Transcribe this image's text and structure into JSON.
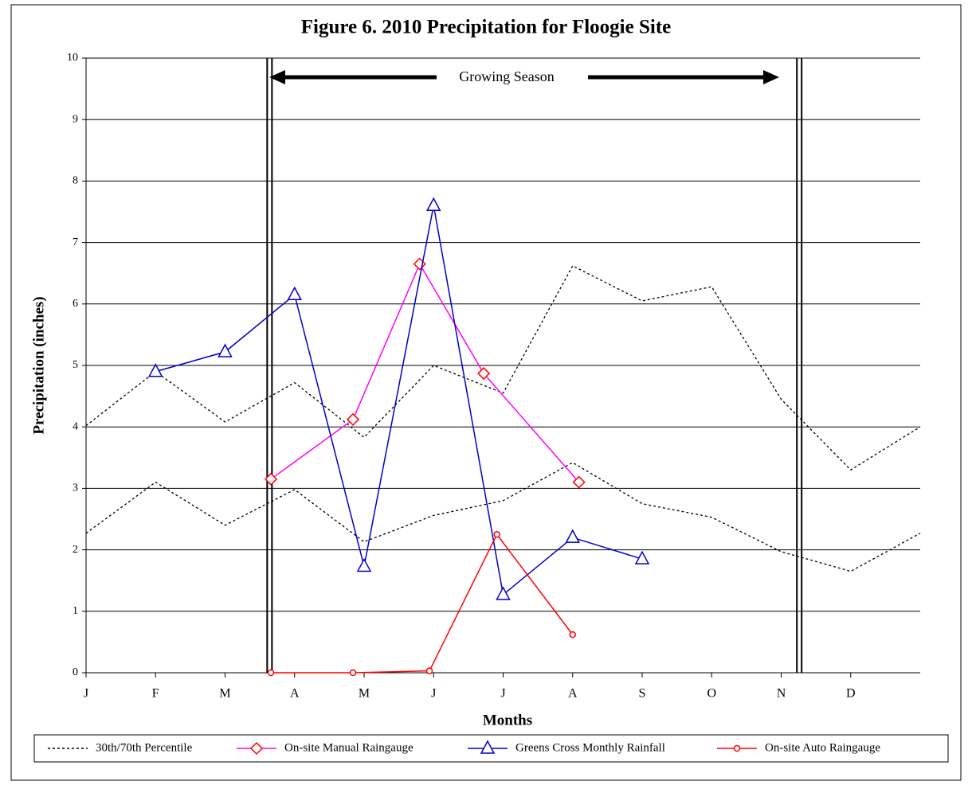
{
  "chart_data": {
    "type": "line",
    "title": "Figure 6.  2010 Precipitation for Floogie Site",
    "xlabel": "Months",
    "ylabel": "Precipitation (inches)",
    "annotation": "Growing Season",
    "vlines": [
      2.64,
      10.26
    ],
    "xlim": [
      0,
      12
    ],
    "xticks": [
      {
        "value": 0,
        "label": "J"
      },
      {
        "value": 1,
        "label": "F"
      },
      {
        "value": 2,
        "label": "M"
      },
      {
        "value": 3,
        "label": "A"
      },
      {
        "value": 4,
        "label": "M"
      },
      {
        "value": 5,
        "label": "J"
      },
      {
        "value": 6,
        "label": "J"
      },
      {
        "value": 7,
        "label": "A"
      },
      {
        "value": 8,
        "label": "S"
      },
      {
        "value": 9,
        "label": "O"
      },
      {
        "value": 10,
        "label": "N"
      },
      {
        "value": 11,
        "label": "D"
      }
    ],
    "ylim": [
      0,
      10
    ],
    "yticks": [
      0,
      1,
      2,
      3,
      4,
      5,
      6,
      7,
      8,
      9,
      10
    ],
    "grid": true,
    "legend": "bottom",
    "series": [
      {
        "name": "30th/70th Percentile",
        "color": "#000000",
        "dash": true,
        "marker": "none",
        "x": [
          0,
          1,
          2,
          3,
          4,
          5,
          6,
          7,
          8,
          9,
          10,
          11,
          12
        ],
        "values": [
          [
            4.02,
            4.9,
            4.08,
            4.72,
            3.83,
            5.0,
            4.55,
            6.62,
            6.05,
            6.28,
            4.45,
            3.3,
            4.0
          ],
          [
            2.27,
            3.1,
            2.4,
            2.98,
            2.13,
            2.56,
            2.8,
            3.42,
            2.75,
            2.53,
            1.97,
            1.65,
            2.27
          ]
        ]
      },
      {
        "name": "On-site Manual Raingauge",
        "color": "#ff00ff",
        "marker": "diamond",
        "marker_color": "#ff0000",
        "x": [
          2.66,
          3.84,
          4.8,
          5.72,
          7.09
        ],
        "values": [
          3.15,
          4.12,
          6.65,
          4.87,
          3.1
        ]
      },
      {
        "name": "Greens Cross Monthly Rainfall",
        "color": "#0000cc",
        "marker": "triangle",
        "marker_color": "#0000cc",
        "x": [
          1,
          2,
          3,
          4,
          5,
          6,
          7,
          8
        ],
        "values": [
          4.9,
          5.22,
          6.15,
          1.73,
          7.6,
          1.27,
          2.2,
          1.85
        ]
      },
      {
        "name": "On-site Auto Raingauge",
        "color": "#ff0000",
        "marker": "circle",
        "marker_color": "#ff0000",
        "x": [
          2.66,
          3.84,
          4.94,
          5.91,
          7.0
        ],
        "values": [
          0,
          0,
          0.03,
          2.25,
          0.62
        ]
      }
    ]
  }
}
